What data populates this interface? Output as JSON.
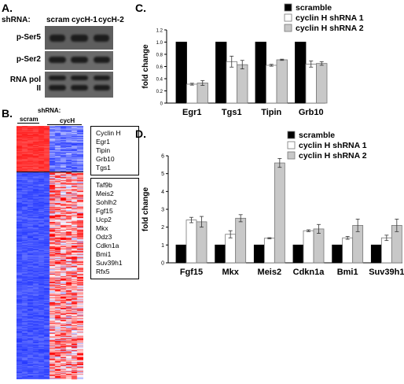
{
  "panelA": {
    "label": "A.",
    "shrna_label": "shRNA:",
    "lanes": [
      "scram",
      "cycH-1",
      "cycH-2"
    ],
    "rows": [
      "p-Ser5",
      "p-Ser2",
      "RNA pol II"
    ]
  },
  "panelB": {
    "label": "B.",
    "shrna_label": "shRNA:",
    "group_labels": [
      "scram",
      "cycH"
    ],
    "genes_top": [
      "Cyclin H",
      "Egr1",
      "Tipin",
      "Grb10",
      "Tgs1"
    ],
    "genes_bottom": [
      "Taf9b",
      "Meis2",
      "Sohlh2",
      "Fgf15",
      "Ucp2",
      "Mkx",
      "Odz3",
      "Cdkn1a",
      "Bmi1",
      "Suv39h1",
      "Rfx5"
    ],
    "colors": {
      "high": "#ff2020",
      "low": "#2030ff",
      "mid": "#ffffff"
    }
  },
  "panelC": {
    "label": "C."
  },
  "panelD": {
    "label": "D."
  },
  "chart_data": [
    {
      "type": "bar",
      "panel": "C",
      "categories": [
        "Egr1",
        "Tgs1",
        "Tipin",
        "Grb10"
      ],
      "series": [
        {
          "name": "scramble",
          "values": [
            1.0,
            1.0,
            1.0,
            1.0
          ],
          "errors": [
            0,
            0,
            0,
            0
          ],
          "color": "#000000"
        },
        {
          "name": "cyclin H shRNA 1",
          "values": [
            0.31,
            0.68,
            0.62,
            0.64
          ],
          "errors": [
            0.015,
            0.09,
            0.015,
            0.05
          ],
          "color": "#ffffff"
        },
        {
          "name": "cyclin H shRNA 2",
          "values": [
            0.33,
            0.63,
            0.71,
            0.65
          ],
          "errors": [
            0.04,
            0.07,
            0.01,
            0.03
          ],
          "color": "#c8c8c8"
        }
      ],
      "ylabel": "fold change",
      "ylim": [
        0,
        1.2
      ],
      "yticks": [
        "0",
        "0.2",
        "0.4",
        "0.6",
        "0.8",
        "1.0",
        "1.2"
      ],
      "legend": "top-right"
    },
    {
      "type": "bar",
      "panel": "D",
      "categories": [
        "Fgf15",
        "Mkx",
        "Meis2",
        "Cdkn1a",
        "Bmi1",
        "Suv39h1"
      ],
      "series": [
        {
          "name": "scramble",
          "values": [
            1.0,
            1.0,
            1.0,
            1.0,
            1.0,
            1.0
          ],
          "errors": [
            0,
            0,
            0,
            0,
            0,
            0
          ],
          "color": "#000000"
        },
        {
          "name": "cyclin H shRNA 1",
          "values": [
            2.4,
            1.6,
            1.38,
            1.8,
            1.4,
            1.4
          ],
          "errors": [
            0.15,
            0.2,
            0.03,
            0.05,
            0.08,
            0.15
          ],
          "color": "#ffffff"
        },
        {
          "name": "cyclin H shRNA 2",
          "values": [
            2.3,
            2.5,
            5.6,
            1.9,
            2.1,
            2.1
          ],
          "errors": [
            0.3,
            0.2,
            0.25,
            0.25,
            0.35,
            0.35
          ],
          "color": "#c8c8c8"
        }
      ],
      "ylabel": "fold change",
      "ylim": [
        0,
        6
      ],
      "yticks": [
        "0",
        "1",
        "2",
        "3",
        "4",
        "5",
        "6"
      ],
      "legend": "top-right"
    }
  ]
}
